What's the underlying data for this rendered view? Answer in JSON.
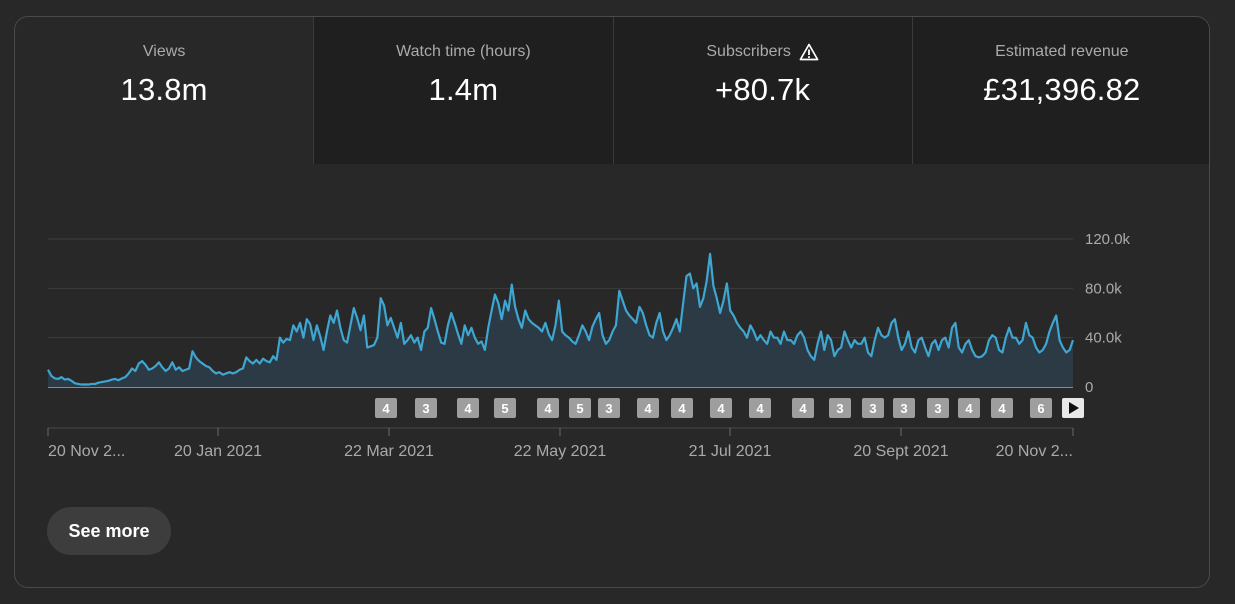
{
  "tabs": [
    {
      "title": "Views",
      "value": "13.8m",
      "active": true
    },
    {
      "title": "Watch time (hours)",
      "value": "1.4m",
      "active": false
    },
    {
      "title": "Subscribers",
      "value": "+80.7k",
      "active": false,
      "icon": "warning-icon"
    },
    {
      "title": "Estimated revenue",
      "value": "£31,396.82",
      "active": false
    }
  ],
  "see_more_label": "See more",
  "colors": {
    "line": "#3ea6d0",
    "fill": "#2b3a44",
    "grid": "#3e3e3e",
    "marker_bg": "#9e9e9e"
  },
  "chart_data": {
    "type": "area",
    "y_ticks": [
      "0",
      "40.0k",
      "80.0k",
      "120.0k"
    ],
    "ylim": [
      0,
      120000
    ],
    "x_labels": [
      "20 Nov 2...",
      "20 Jan 2021",
      "22 Mar 2021",
      "22 May 2021",
      "21 Jul 2021",
      "20 Sept 2021",
      "20 Nov 2..."
    ],
    "grid": true,
    "markers": [
      "4",
      "3",
      "4",
      "5",
      "4",
      "5",
      "3",
      "4",
      "4",
      "4",
      "4",
      "4",
      "3",
      "3",
      "3",
      "3",
      "4",
      "4",
      "6"
    ],
    "series": [
      {
        "values": [
          14000,
          9000,
          7000,
          6500,
          8000,
          6000,
          6500,
          5000,
          3000,
          2500,
          2000,
          2000,
          2000,
          2500,
          2500,
          3500,
          4000,
          4500,
          5000,
          6000,
          6500,
          5500,
          7000,
          8000,
          11000,
          15000,
          13000,
          19000,
          21000,
          18000,
          14000,
          15000,
          17000,
          20000,
          16000,
          13000,
          15000,
          20000,
          14000,
          16000,
          13000,
          14000,
          15000,
          29000,
          24000,
          21000,
          19000,
          17000,
          16000,
          13000,
          11000,
          12000,
          10000,
          11000,
          12000,
          11000,
          12000,
          14000,
          15000,
          24000,
          21000,
          19000,
          22000,
          19000,
          23000,
          21000,
          20000,
          25000,
          22000,
          40000,
          36000,
          39000,
          38000,
          50000,
          45000,
          52000,
          40000,
          55000,
          51000,
          38000,
          50000,
          41000,
          30000,
          45000,
          58000,
          52000,
          62000,
          48000,
          38000,
          36000,
          50000,
          64000,
          56000,
          46000,
          58000,
          32000,
          33000,
          34000,
          40000,
          72000,
          66000,
          50000,
          56000,
          48000,
          40000,
          52000,
          35000,
          38000,
          42000,
          36000,
          40000,
          30000,
          45000,
          48000,
          64000,
          55000,
          45000,
          36000,
          35000,
          50000,
          60000,
          52000,
          43000,
          35000,
          50000,
          42000,
          48000,
          40000,
          35000,
          37000,
          30000,
          48000,
          62000,
          75000,
          68000,
          55000,
          70000,
          62000,
          83000,
          65000,
          55000,
          48000,
          62000,
          55000,
          52000,
          50000,
          48000,
          45000,
          52000,
          43000,
          38000,
          50000,
          70000,
          45000,
          42000,
          40000,
          37000,
          35000,
          42000,
          50000,
          45000,
          38000,
          49000,
          55000,
          60000,
          42000,
          35000,
          38000,
          45000,
          50000,
          78000,
          70000,
          62000,
          58000,
          55000,
          52000,
          65000,
          60000,
          50000,
          42000,
          40000,
          52000,
          60000,
          45000,
          38000,
          42000,
          48000,
          55000,
          45000,
          68000,
          90000,
          92000,
          80000,
          84000,
          65000,
          72000,
          86000,
          108000,
          82000,
          72000,
          60000,
          70000,
          84000,
          62000,
          58000,
          52000,
          48000,
          45000,
          40000,
          50000,
          45000,
          38000,
          42000,
          38000,
          35000,
          45000,
          40000,
          40000,
          35000,
          45000,
          38000,
          38000,
          35000,
          42000,
          45000,
          40000,
          30000,
          25000,
          22000,
          35000,
          45000,
          30000,
          42000,
          38000,
          25000,
          30000,
          32000,
          45000,
          38000,
          32000,
          38000,
          35000,
          35000,
          40000,
          28000,
          25000,
          38000,
          48000,
          42000,
          40000,
          42000,
          52000,
          55000,
          40000,
          30000,
          35000,
          45000,
          32000,
          28000,
          38000,
          40000,
          32000,
          25000,
          35000,
          38000,
          30000,
          38000,
          40000,
          32000,
          48000,
          52000,
          32000,
          28000,
          35000,
          38000,
          30000,
          25000,
          24000,
          25000,
          28000,
          38000,
          42000,
          40000,
          30000,
          28000,
          40000,
          48000,
          40000,
          40000,
          35000,
          38000,
          52000,
          42000,
          40000,
          32000,
          28000,
          30000,
          35000,
          45000,
          52000,
          58000,
          38000,
          32000,
          28000,
          30000,
          38000
        ]
      }
    ]
  }
}
